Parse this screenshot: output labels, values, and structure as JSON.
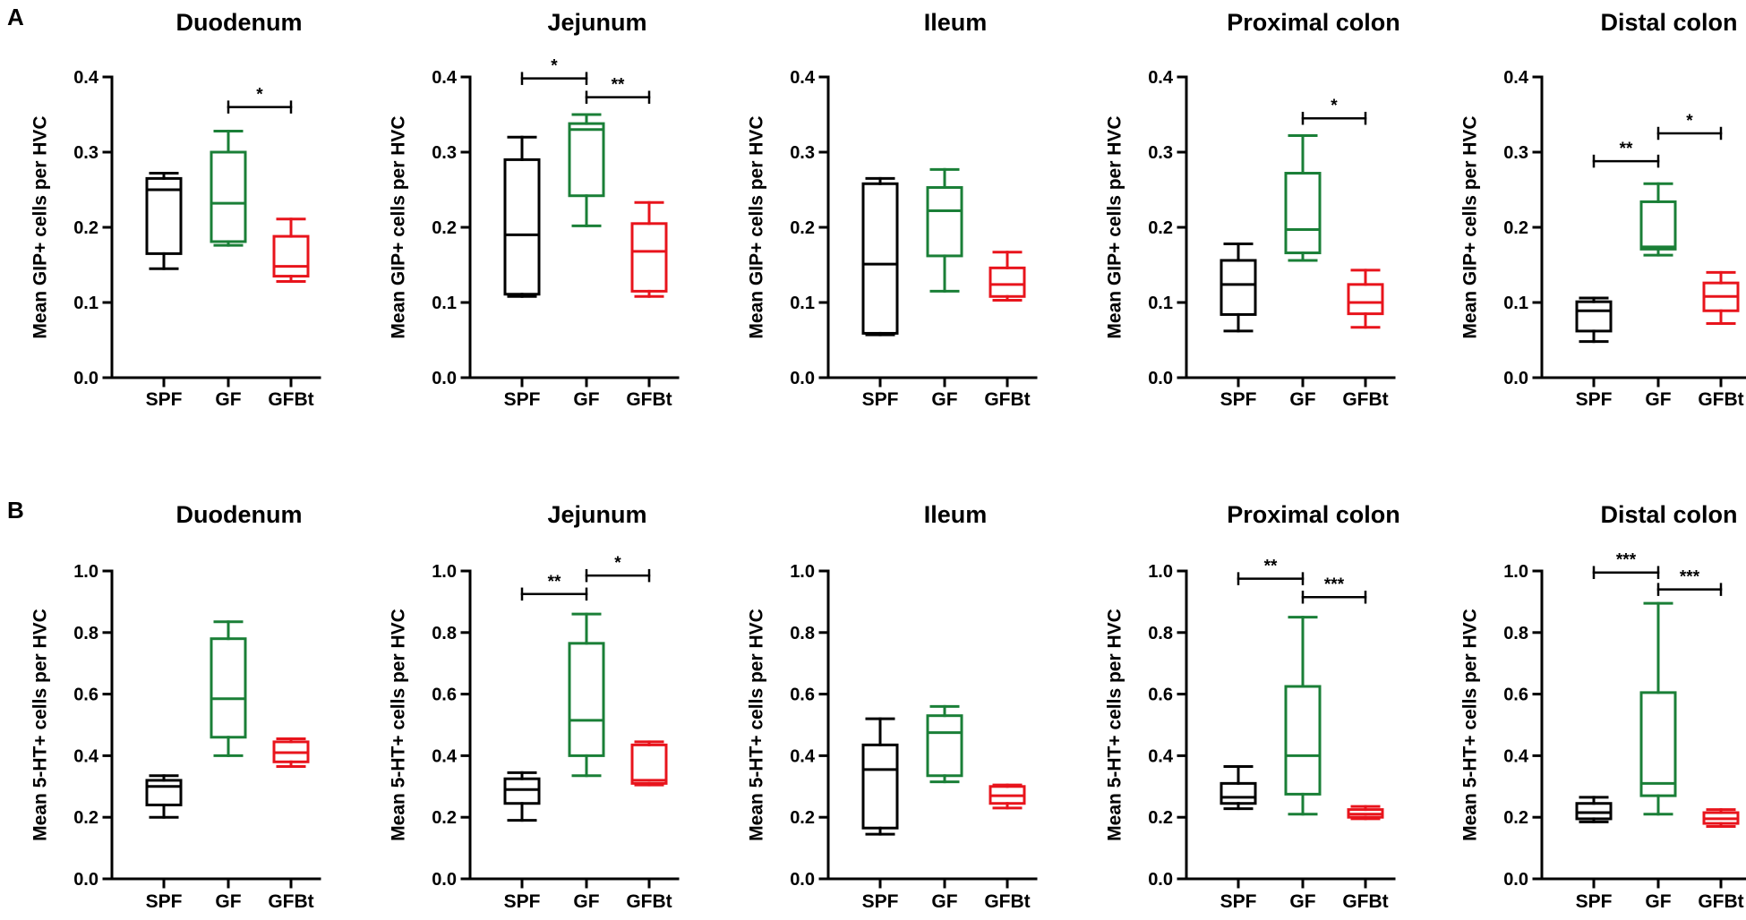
{
  "chart_data": [
    {
      "type": "box",
      "panel": "A",
      "title": "Duodenum",
      "ylabel": "Mean GIP+ cells per HVC",
      "ylim": [
        0,
        0.4
      ],
      "ticks": [
        "0.0",
        "0.1",
        "0.2",
        "0.3",
        "0.4"
      ],
      "categories": [
        "SPF",
        "GF",
        "GFBt"
      ],
      "boxes": [
        {
          "group": "SPF",
          "min": 0.145,
          "q1": 0.165,
          "median": 0.25,
          "q3": 0.265,
          "max": 0.272,
          "color": "#000000"
        },
        {
          "group": "GF",
          "min": 0.176,
          "q1": 0.181,
          "median": 0.232,
          "q3": 0.3,
          "max": 0.328,
          "color": "#1a7f37"
        },
        {
          "group": "GFBt",
          "min": 0.128,
          "q1": 0.135,
          "median": 0.148,
          "q3": 0.188,
          "max": 0.211,
          "color": "#e8141c"
        }
      ],
      "significance": [
        {
          "from": "GF",
          "to": "GFBt",
          "y": 0.36,
          "label": "*"
        }
      ]
    },
    {
      "type": "box",
      "panel": "",
      "title": "Jejunum",
      "ylabel": "Mean GIP+ cells per HVC",
      "ylim": [
        0,
        0.4
      ],
      "ticks": [
        "0.0",
        "0.1",
        "0.2",
        "0.3",
        "0.4"
      ],
      "categories": [
        "SPF",
        "GF",
        "GFBt"
      ],
      "boxes": [
        {
          "group": "SPF",
          "min": 0.108,
          "q1": 0.111,
          "median": 0.19,
          "q3": 0.29,
          "max": 0.32,
          "color": "#000000"
        },
        {
          "group": "GF",
          "min": 0.202,
          "q1": 0.242,
          "median": 0.33,
          "q3": 0.338,
          "max": 0.35,
          "color": "#1a7f37"
        },
        {
          "group": "GFBt",
          "min": 0.108,
          "q1": 0.115,
          "median": 0.168,
          "q3": 0.205,
          "max": 0.233,
          "color": "#e8141c"
        }
      ],
      "significance": [
        {
          "from": "SPF",
          "to": "GF",
          "y": 0.398,
          "label": "*"
        },
        {
          "from": "GF",
          "to": "GFBt",
          "y": 0.373,
          "label": "**"
        }
      ]
    },
    {
      "type": "box",
      "panel": "",
      "title": "Ileum",
      "ylabel": "Mean GIP+ cells per HVC",
      "ylim": [
        0,
        0.4
      ],
      "ticks": [
        "0.0",
        "0.1",
        "0.2",
        "0.3",
        "0.4"
      ],
      "categories": [
        "SPF",
        "GF",
        "GFBt"
      ],
      "boxes": [
        {
          "group": "SPF",
          "min": 0.057,
          "q1": 0.059,
          "median": 0.151,
          "q3": 0.258,
          "max": 0.265,
          "color": "#000000"
        },
        {
          "group": "GF",
          "min": 0.115,
          "q1": 0.162,
          "median": 0.222,
          "q3": 0.253,
          "max": 0.277,
          "color": "#1a7f37"
        },
        {
          "group": "GFBt",
          "min": 0.103,
          "q1": 0.108,
          "median": 0.124,
          "q3": 0.146,
          "max": 0.167,
          "color": "#e8141c"
        }
      ],
      "significance": []
    },
    {
      "type": "box",
      "panel": "",
      "title": "Proximal colon",
      "ylabel": "Mean GIP+ cells per HVC",
      "ylim": [
        0,
        0.4
      ],
      "ticks": [
        "0.0",
        "0.1",
        "0.2",
        "0.3",
        "0.4"
      ],
      "categories": [
        "SPF",
        "GF",
        "GFBt"
      ],
      "boxes": [
        {
          "group": "SPF",
          "min": 0.062,
          "q1": 0.084,
          "median": 0.124,
          "q3": 0.156,
          "max": 0.178,
          "color": "#000000"
        },
        {
          "group": "GF",
          "min": 0.156,
          "q1": 0.166,
          "median": 0.197,
          "q3": 0.272,
          "max": 0.322,
          "color": "#1a7f37"
        },
        {
          "group": "GFBt",
          "min": 0.067,
          "q1": 0.085,
          "median": 0.1,
          "q3": 0.124,
          "max": 0.143,
          "color": "#e8141c"
        }
      ],
      "significance": [
        {
          "from": "GF",
          "to": "GFBt",
          "y": 0.345,
          "label": "*"
        }
      ]
    },
    {
      "type": "box",
      "panel": "",
      "title": "Distal colon",
      "ylabel": "Mean GIP+ cells per HVC",
      "ylim": [
        0,
        0.4
      ],
      "ticks": [
        "0.0",
        "0.1",
        "0.2",
        "0.3",
        "0.4"
      ],
      "categories": [
        "SPF",
        "GF",
        "GFBt"
      ],
      "boxes": [
        {
          "group": "SPF",
          "min": 0.048,
          "q1": 0.062,
          "median": 0.089,
          "q3": 0.101,
          "max": 0.106,
          "color": "#000000"
        },
        {
          "group": "GF",
          "min": 0.163,
          "q1": 0.171,
          "median": 0.174,
          "q3": 0.234,
          "max": 0.258,
          "color": "#1a7f37"
        },
        {
          "group": "GFBt",
          "min": 0.072,
          "q1": 0.089,
          "median": 0.108,
          "q3": 0.126,
          "max": 0.14,
          "color": "#e8141c"
        }
      ],
      "significance": [
        {
          "from": "SPF",
          "to": "GF",
          "y": 0.288,
          "label": "**"
        },
        {
          "from": "GF",
          "to": "GFBt",
          "y": 0.325,
          "label": "*"
        }
      ]
    },
    {
      "type": "box",
      "panel": "B",
      "title": "Duodenum",
      "ylabel": "Mean 5-HT+ cells per HVC",
      "ylim": [
        0,
        1.0
      ],
      "ticks": [
        "0.0",
        "0.2",
        "0.4",
        "0.6",
        "0.8",
        "1.0"
      ],
      "categories": [
        "SPF",
        "GF",
        "GFBt"
      ],
      "boxes": [
        {
          "group": "SPF",
          "min": 0.2,
          "q1": 0.24,
          "median": 0.3,
          "q3": 0.32,
          "max": 0.335,
          "color": "#000000"
        },
        {
          "group": "GF",
          "min": 0.4,
          "q1": 0.46,
          "median": 0.585,
          "q3": 0.78,
          "max": 0.835,
          "color": "#1a7f37"
        },
        {
          "group": "GFBt",
          "min": 0.365,
          "q1": 0.38,
          "median": 0.41,
          "q3": 0.445,
          "max": 0.455,
          "color": "#e8141c"
        }
      ],
      "significance": []
    },
    {
      "type": "box",
      "panel": "",
      "title": "Jejunum",
      "ylabel": "Mean 5-HT+ cells per HVC",
      "ylim": [
        0,
        1.0
      ],
      "ticks": [
        "0.0",
        "0.2",
        "0.4",
        "0.6",
        "0.8",
        "1.0"
      ],
      "categories": [
        "SPF",
        "GF",
        "GFBt"
      ],
      "boxes": [
        {
          "group": "SPF",
          "min": 0.19,
          "q1": 0.245,
          "median": 0.29,
          "q3": 0.325,
          "max": 0.345,
          "color": "#000000"
        },
        {
          "group": "GF",
          "min": 0.335,
          "q1": 0.4,
          "median": 0.515,
          "q3": 0.765,
          "max": 0.86,
          "color": "#1a7f37"
        },
        {
          "group": "GFBt",
          "min": 0.305,
          "q1": 0.31,
          "median": 0.32,
          "q3": 0.435,
          "max": 0.445,
          "color": "#e8141c"
        }
      ],
      "significance": [
        {
          "from": "SPF",
          "to": "GF",
          "y": 0.925,
          "label": "**"
        },
        {
          "from": "GF",
          "to": "GFBt",
          "y": 0.985,
          "label": "*"
        }
      ]
    },
    {
      "type": "box",
      "panel": "",
      "title": "Ileum",
      "ylabel": "Mean 5-HT+ cells per HVC",
      "ylim": [
        0,
        1.0
      ],
      "ticks": [
        "0.0",
        "0.2",
        "0.4",
        "0.6",
        "0.8",
        "1.0"
      ],
      "categories": [
        "SPF",
        "GF",
        "GFBt"
      ],
      "boxes": [
        {
          "group": "SPF",
          "min": 0.145,
          "q1": 0.165,
          "median": 0.355,
          "q3": 0.435,
          "max": 0.52,
          "color": "#000000"
        },
        {
          "group": "GF",
          "min": 0.315,
          "q1": 0.335,
          "median": 0.475,
          "q3": 0.53,
          "max": 0.56,
          "color": "#1a7f37"
        },
        {
          "group": "GFBt",
          "min": 0.23,
          "q1": 0.245,
          "median": 0.27,
          "q3": 0.3,
          "max": 0.305,
          "color": "#e8141c"
        }
      ],
      "significance": []
    },
    {
      "type": "box",
      "panel": "",
      "title": "Proximal colon",
      "ylabel": "Mean 5-HT+ cells per HVC",
      "ylim": [
        0,
        1.0
      ],
      "ticks": [
        "0.0",
        "0.2",
        "0.4",
        "0.6",
        "0.8",
        "1.0"
      ],
      "categories": [
        "SPF",
        "GF",
        "GFBt"
      ],
      "boxes": [
        {
          "group": "SPF",
          "min": 0.228,
          "q1": 0.245,
          "median": 0.265,
          "q3": 0.31,
          "max": 0.365,
          "color": "#000000"
        },
        {
          "group": "GF",
          "min": 0.21,
          "q1": 0.275,
          "median": 0.4,
          "q3": 0.625,
          "max": 0.85,
          "color": "#1a7f37"
        },
        {
          "group": "GFBt",
          "min": 0.195,
          "q1": 0.2,
          "median": 0.21,
          "q3": 0.225,
          "max": 0.235,
          "color": "#e8141c"
        }
      ],
      "significance": [
        {
          "from": "SPF",
          "to": "GF",
          "y": 0.975,
          "label": "**"
        },
        {
          "from": "GF",
          "to": "GFBt",
          "y": 0.915,
          "label": "***"
        }
      ]
    },
    {
      "type": "box",
      "panel": "",
      "title": "Distal colon",
      "ylabel": "Mean 5-HT+ cells per HVC",
      "ylim": [
        0,
        1.0
      ],
      "ticks": [
        "0.0",
        "0.2",
        "0.4",
        "0.6",
        "0.8",
        "1.0"
      ],
      "categories": [
        "SPF",
        "GF",
        "GFBt"
      ],
      "boxes": [
        {
          "group": "SPF",
          "min": 0.185,
          "q1": 0.195,
          "median": 0.215,
          "q3": 0.245,
          "max": 0.265,
          "color": "#000000"
        },
        {
          "group": "GF",
          "min": 0.21,
          "q1": 0.27,
          "median": 0.31,
          "q3": 0.605,
          "max": 0.895,
          "color": "#1a7f37"
        },
        {
          "group": "GFBt",
          "min": 0.17,
          "q1": 0.18,
          "median": 0.195,
          "q3": 0.215,
          "max": 0.225,
          "color": "#e8141c"
        }
      ],
      "significance": [
        {
          "from": "SPF",
          "to": "GF",
          "y": 0.995,
          "label": "***"
        },
        {
          "from": "GF",
          "to": "GFBt",
          "y": 0.94,
          "label": "***"
        }
      ]
    }
  ]
}
